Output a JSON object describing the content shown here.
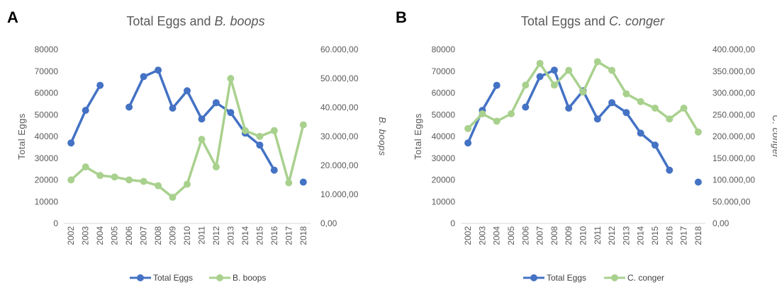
{
  "colors": {
    "total": "#4472C4",
    "species": "#A9D18E",
    "axis_text": "#595959",
    "grid": "#d9d9d9"
  },
  "chart_data": [
    {
      "panel_label": "A",
      "type": "line",
      "title_prefix": "Total Eggs and ",
      "title_species": "B. boops",
      "x": [
        "2002",
        "2003",
        "2004",
        "2005",
        "2006",
        "2007",
        "2008",
        "2009",
        "2010",
        "2011",
        "2012",
        "2013",
        "2014",
        "2015",
        "2016",
        "2017",
        "2018"
      ],
      "ylabel_left": "Total Eggs",
      "ylabel_right": "B. boops",
      "ylim_left": [
        0,
        80000
      ],
      "ylim_right": [
        0,
        60000
      ],
      "yticks_left": [
        "0",
        "10000",
        "20000",
        "30000",
        "40000",
        "50000",
        "60000",
        "70000",
        "80000"
      ],
      "yticks_right": [
        "0,00",
        "10.000,00",
        "20.000,00",
        "30.000,00",
        "40.000,00",
        "50.000,00",
        "60.000,00"
      ],
      "series": [
        {
          "name": "Total Eggs",
          "axis": "left",
          "values": [
            37000,
            52000,
            63500,
            null,
            53500,
            67500,
            70500,
            53000,
            61000,
            48000,
            55500,
            51000,
            41500,
            36000,
            24500,
            null,
            19000
          ]
        },
        {
          "name": "B. boops",
          "axis": "right",
          "values": [
            15000,
            19500,
            16500,
            16000,
            15000,
            14500,
            13000,
            9000,
            13500,
            29000,
            19500,
            50000,
            32000,
            30000,
            32000,
            14000,
            34000
          ]
        }
      ],
      "legend": [
        "Total Eggs",
        "B. boops"
      ],
      "legend_position": "bottom",
      "grid": false
    },
    {
      "panel_label": "B",
      "type": "line",
      "title_prefix": "Total Eggs and ",
      "title_species": "C. conger",
      "x": [
        "2002",
        "2003",
        "2004",
        "2005",
        "2006",
        "2007",
        "2008",
        "2009",
        "2010",
        "2011",
        "2012",
        "2013",
        "2014",
        "2015",
        "2016",
        "2017",
        "2018"
      ],
      "ylabel_left": "Total Eggs",
      "ylabel_right": "C. conger",
      "ylim_left": [
        0,
        80000
      ],
      "ylim_right": [
        0,
        400000
      ],
      "yticks_left": [
        "0",
        "10000",
        "20000",
        "30000",
        "40000",
        "50000",
        "60000",
        "70000",
        "80000"
      ],
      "yticks_right": [
        "0,00",
        "50.000,00",
        "100.000,00",
        "150.000,00",
        "200.000,00",
        "250.000,00",
        "300.000,00",
        "350.000,00",
        "400.000,00"
      ],
      "series": [
        {
          "name": "Total Eggs",
          "axis": "left",
          "values": [
            37000,
            52000,
            63500,
            null,
            53500,
            67500,
            70500,
            53000,
            61000,
            48000,
            55500,
            51000,
            41500,
            36000,
            24500,
            null,
            19000
          ]
        },
        {
          "name": "C. conger",
          "axis": "right",
          "values": [
            218000,
            252000,
            235000,
            252000,
            318000,
            368000,
            318000,
            352000,
            302000,
            372000,
            352000,
            298000,
            280000,
            265000,
            240000,
            265000,
            210000
          ]
        }
      ],
      "legend": [
        "Total Eggs",
        "C. conger"
      ],
      "legend_position": "bottom",
      "grid": false
    }
  ]
}
